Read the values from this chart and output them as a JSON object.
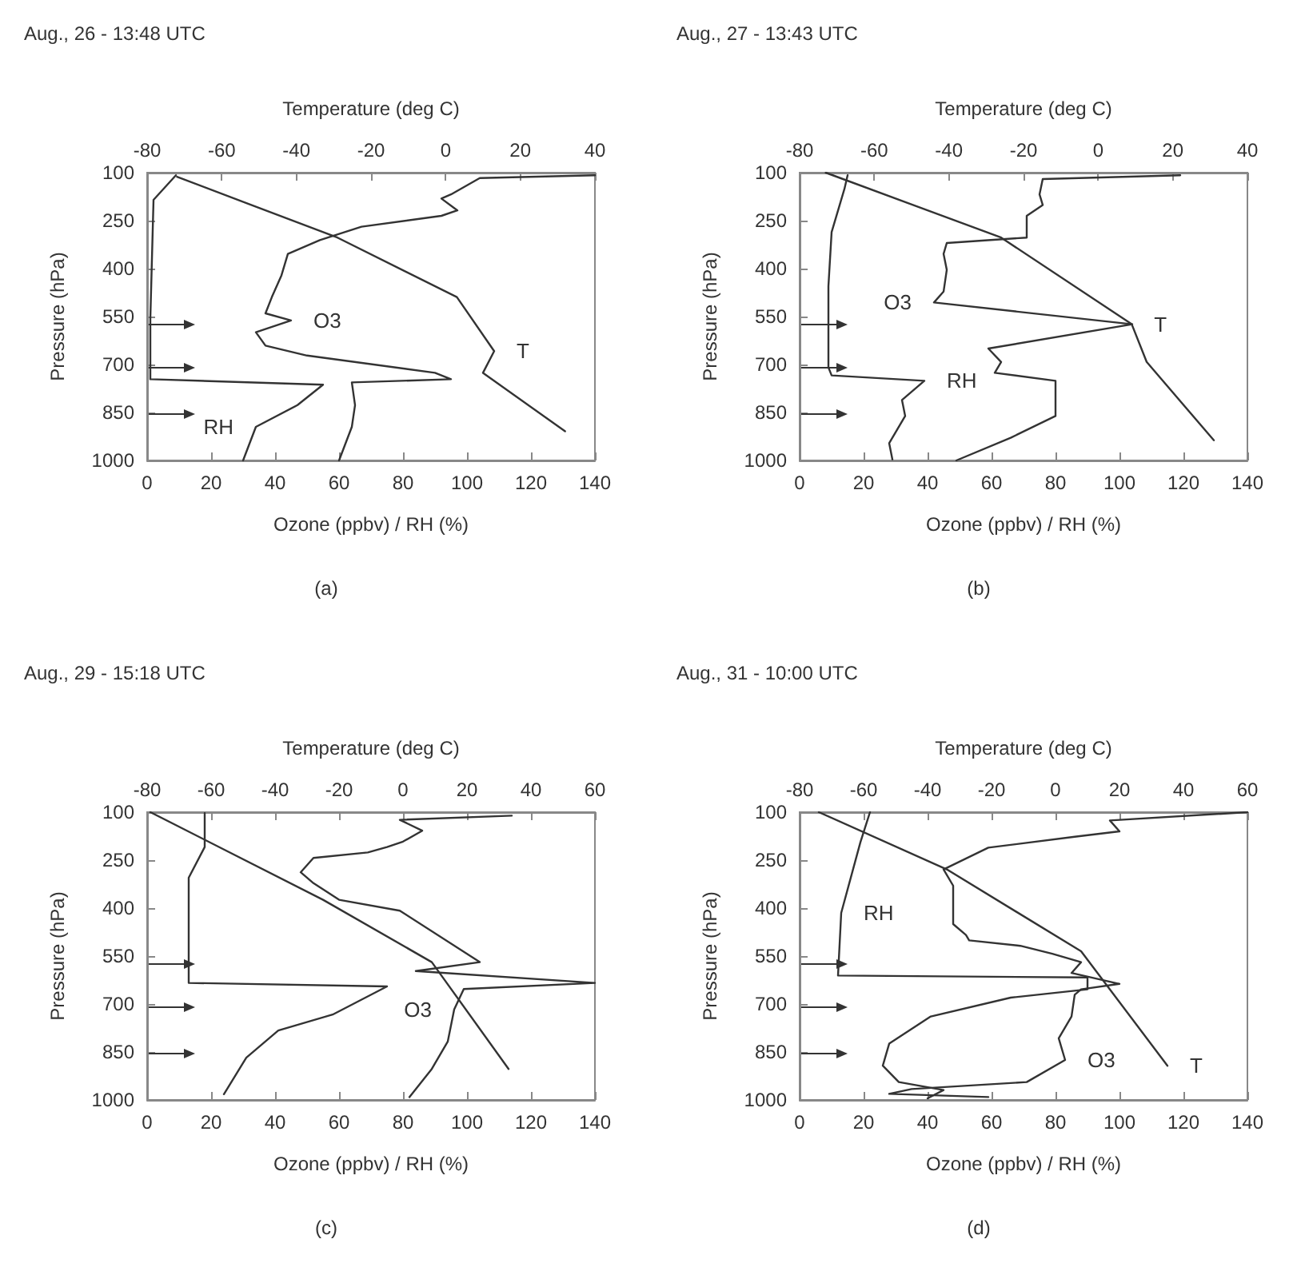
{
  "chart_data": [
    {
      "type": "line",
      "title": "Aug., 26 - 13:48 UTC",
      "xlabel": "Ozone (ppbv) / RH (%)",
      "x2label": "Temperature (deg C)",
      "ylabel": "Pressure (hPa)",
      "xlim": [
        0,
        140
      ],
      "xticks": [
        0,
        20,
        40,
        60,
        80,
        100,
        120,
        140
      ],
      "x2lim": [
        -80,
        40
      ],
      "x2ticks": [
        -80,
        -60,
        -40,
        -20,
        0,
        20,
        40
      ],
      "ylim": [
        1000,
        100
      ],
      "yticks": [
        100,
        250,
        400,
        550,
        700,
        850,
        1000
      ],
      "series": [
        {
          "name": "O3",
          "color": "#333333",
          "x": [
            140,
            104,
            95,
            92,
            97,
            92,
            67,
            54,
            44,
            42,
            39,
            37,
            45,
            34,
            37,
            50,
            90,
            95,
            64,
            65,
            64,
            60
          ],
          "values": [
            108,
            117,
            168,
            181,
            218,
            235,
            269,
            311,
            354,
            421,
            489,
            540,
            562,
            599,
            641,
            672,
            726,
            746,
            756,
            827,
            895,
            1000
          ]
        },
        {
          "name": "RH",
          "color": "#333333",
          "x": [
            9,
            2,
            1,
            1,
            55,
            47,
            34,
            30
          ],
          "values": [
            108,
            185,
            557,
            746,
            763,
            827,
            895,
            1000
          ]
        },
        {
          "name": "T",
          "color": "#333333",
          "axis": "x2",
          "x": [
            -72,
            -29,
            3,
            13,
            10,
            32
          ],
          "values": [
            113,
            303,
            489,
            658,
            726,
            909
          ]
        }
      ],
      "annotations": [
        "(a)"
      ]
    },
    {
      "type": "line",
      "title": "Aug., 27 - 13:43 UTC",
      "xlabel": "Ozone (ppbv) / RH (%)",
      "x2label": "Temperature (deg C)",
      "ylabel": "Pressure (hPa)",
      "xlim": [
        0,
        140
      ],
      "xticks": [
        0,
        20,
        40,
        60,
        80,
        100,
        120,
        140
      ],
      "x2lim": [
        -80,
        40
      ],
      "x2ticks": [
        -80,
        -60,
        -40,
        -20,
        0,
        20,
        40
      ],
      "ylim": [
        1000,
        100
      ],
      "yticks": [
        100,
        250,
        400,
        550,
        700,
        850,
        1000
      ],
      "series": [
        {
          "name": "O3",
          "color": "#333333",
          "x": [
            119,
            76,
            75,
            76,
            71,
            71,
            46,
            45,
            46,
            45,
            42,
            104,
            59,
            63,
            61,
            80,
            80,
            66,
            49
          ],
          "values": [
            108,
            120,
            168,
            201,
            235,
            303,
            320,
            354,
            404,
            472,
            506,
            574,
            650,
            692,
            726,
            751,
            861,
            929,
            1000
          ]
        },
        {
          "name": "RH",
          "color": "#333333",
          "x": [
            15,
            14,
            10,
            9,
            9,
            10,
            39,
            32,
            33,
            28,
            29
          ],
          "values": [
            108,
            151,
            286,
            455,
            709,
            734,
            751,
            811,
            861,
            946,
            997
          ]
        },
        {
          "name": "T",
          "color": "#333333",
          "axis": "x2",
          "x": [
            -73,
            -26,
            9,
            13,
            31
          ],
          "values": [
            100,
            303,
            574,
            692,
            937
          ]
        }
      ],
      "annotations": [
        "(b)"
      ]
    },
    {
      "type": "line",
      "title": "Aug., 29 - 15:18 UTC",
      "xlabel": "Ozone (ppbv) / RH (%)",
      "x2label": "Temperature (deg C)",
      "ylabel": "Pressure (hPa)",
      "xlim": [
        0,
        140
      ],
      "xticks": [
        0,
        20,
        40,
        60,
        80,
        100,
        120,
        140
      ],
      "x2lim": [
        -80,
        60
      ],
      "x2ticks": [
        -80,
        -60,
        -40,
        -20,
        0,
        20,
        40,
        60
      ],
      "ylim": [
        1000,
        100
      ],
      "yticks": [
        100,
        250,
        400,
        550,
        700,
        850,
        1000
      ],
      "series": [
        {
          "name": "O3",
          "color": "#333333",
          "x": [
            114,
            79,
            86,
            80,
            75,
            69,
            52,
            48,
            52,
            60,
            79,
            104,
            84,
            140,
            99,
            96,
            94,
            89,
            82
          ],
          "values": [
            111,
            124,
            158,
            192,
            209,
            226,
            243,
            288,
            322,
            374,
            408,
            569,
            597,
            634,
            653,
            717,
            817,
            903,
            991
          ]
        },
        {
          "color": "#333333",
          "x": [
            18,
            18,
            13,
            13,
            75,
            58,
            41,
            31,
            24
          ],
          "values": [
            103,
            209,
            305,
            634,
            645,
            733,
            783,
            868,
            982
          ]
        },
        {
          "color": "#333333",
          "axis": "x2",
          "x": [
            -79,
            -25,
            9,
            33
          ],
          "values": [
            100,
            374,
            569,
            903
          ]
        }
      ],
      "annotations": [
        "(c)"
      ]
    },
    {
      "type": "line",
      "title": "Aug., 31 - 10:00 UTC",
      "xlabel": "Ozone (ppbv) / RH (%)",
      "x2label": "Temperature (deg C)",
      "ylabel": "Pressure (hPa)",
      "xlim": [
        0,
        140
      ],
      "xticks": [
        0,
        20,
        40,
        60,
        80,
        100,
        120,
        140
      ],
      "x2lim": [
        -80,
        60
      ],
      "x2ticks": [
        -80,
        -60,
        -40,
        -20,
        0,
        20,
        40,
        60
      ],
      "ylim": [
        1000,
        100
      ],
      "yticks": [
        100,
        250,
        400,
        550,
        700,
        850,
        1000
      ],
      "series": [
        {
          "name": "O3",
          "color": "#333333",
          "x": [
            140,
            97,
            100,
            86,
            59,
            45,
            48,
            48,
            52,
            53,
            69,
            79,
            88,
            85,
            100,
            88,
            86,
            85,
            81,
            83,
            71,
            35,
            28,
            59
          ],
          "values": [
            100,
            126,
            160,
            177,
            211,
            279,
            330,
            450,
            484,
            501,
            518,
            543,
            569,
            603,
            637,
            654,
            671,
            739,
            807,
            875,
            944,
            966,
            981,
            991
          ]
        },
        {
          "name": "RH",
          "color": "#333333",
          "x": [
            22,
            19,
            13,
            12,
            90,
            90,
            66,
            41,
            28,
            26,
            31,
            45,
            40
          ],
          "values": [
            100,
            194,
            415,
            611,
            617,
            654,
            680,
            739,
            824,
            893,
            944,
            969,
            995
          ]
        },
        {
          "name": "T",
          "color": "#333333",
          "axis": "x2",
          "x": [
            -74,
            -34,
            8,
            35
          ],
          "values": [
            100,
            279,
            535,
            893
          ]
        }
      ],
      "annotations": [
        "(d)"
      ]
    }
  ]
}
